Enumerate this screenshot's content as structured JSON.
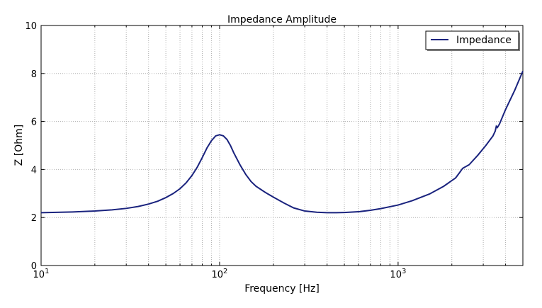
{
  "chart_data": {
    "type": "line",
    "title": "Impedance Amplitude",
    "xlabel": "Frequency [Hz]",
    "ylabel": "Z [Ohm]",
    "x_scale": "log",
    "xlim": [
      10,
      5000
    ],
    "ylim": [
      0,
      10
    ],
    "x_ticks": [
      {
        "value": 10,
        "base": "10",
        "exp": "1"
      },
      {
        "value": 100,
        "base": "10",
        "exp": "2"
      },
      {
        "value": 1000,
        "base": "10",
        "exp": "3"
      }
    ],
    "y_ticks": [
      "0",
      "2",
      "4",
      "6",
      "8",
      "10"
    ],
    "grid": true,
    "legend_position": "top-right",
    "series": [
      {
        "name": "Impedance",
        "color": "#1a237e",
        "x": [
          10,
          15,
          20,
          25,
          30,
          35,
          40,
          45,
          50,
          55,
          60,
          65,
          70,
          75,
          80,
          85,
          90,
          95,
          100,
          105,
          110,
          115,
          120,
          130,
          140,
          150,
          160,
          180,
          200,
          230,
          260,
          300,
          350,
          400,
          450,
          500,
          600,
          700,
          800,
          1000,
          1200,
          1500,
          1800,
          2100,
          2200,
          2300,
          2500,
          2800,
          3100,
          3400,
          3500,
          3550,
          3600,
          3700,
          4000,
          4500,
          5000
        ],
        "y": [
          2.2,
          2.23,
          2.27,
          2.32,
          2.38,
          2.46,
          2.56,
          2.68,
          2.83,
          3.0,
          3.2,
          3.45,
          3.75,
          4.1,
          4.5,
          4.9,
          5.2,
          5.4,
          5.45,
          5.4,
          5.25,
          5.0,
          4.7,
          4.2,
          3.8,
          3.5,
          3.3,
          3.05,
          2.85,
          2.6,
          2.4,
          2.27,
          2.22,
          2.2,
          2.2,
          2.21,
          2.24,
          2.3,
          2.37,
          2.52,
          2.7,
          2.98,
          3.3,
          3.65,
          3.85,
          4.05,
          4.2,
          4.6,
          5.0,
          5.4,
          5.6,
          5.8,
          5.75,
          5.9,
          6.5,
          7.3,
          8.1
        ]
      }
    ]
  }
}
